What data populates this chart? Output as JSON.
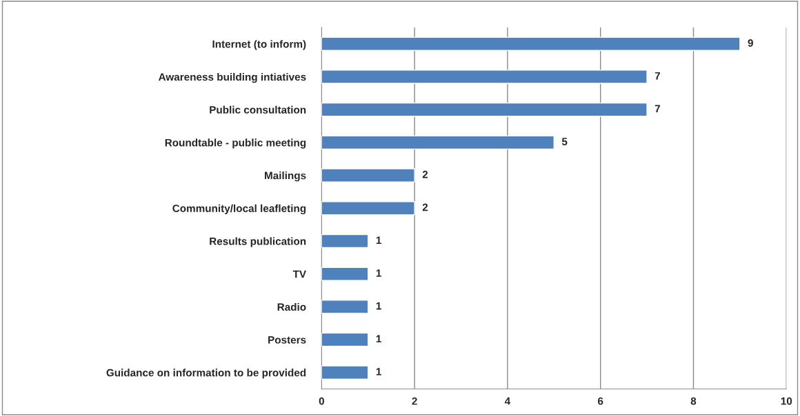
{
  "chart_data": {
    "type": "bar",
    "orientation": "horizontal",
    "categories": [
      "Internet (to inform)",
      "Awareness building intiatives",
      "Public consultation",
      "Roundtable - public meeting",
      "Mailings",
      "Community/local leafleting",
      "Results publication",
      "TV",
      "Radio",
      "Posters",
      "Guidance on information to be provided"
    ],
    "values": [
      9,
      7,
      7,
      5,
      2,
      2,
      1,
      1,
      1,
      1,
      1
    ],
    "color": "#4f81bd",
    "xlim": [
      0,
      10
    ],
    "xticks": [
      0,
      2,
      4,
      6,
      8,
      10
    ],
    "grid": "x",
    "data_labels": true,
    "legend": false
  }
}
